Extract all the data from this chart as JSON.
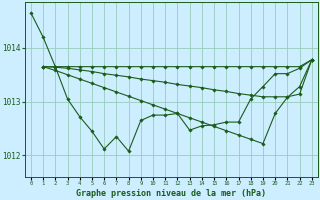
{
  "title": "Graphe pression niveau de la mer (hPa)",
  "bg_color": "#cceeff",
  "grid_color": "#99ccbb",
  "line_color": "#1a5c1a",
  "marker_color": "#1a5c1a",
  "xlim": [
    -0.5,
    23.5
  ],
  "ylim": [
    1011.6,
    1014.85
  ],
  "yticks": [
    1012,
    1013,
    1014
  ],
  "xticks": [
    0,
    1,
    2,
    3,
    4,
    5,
    6,
    7,
    8,
    9,
    10,
    11,
    12,
    13,
    14,
    15,
    16,
    17,
    18,
    19,
    20,
    21,
    22,
    23
  ],
  "series": [
    {
      "x": [
        0,
        1,
        2,
        3,
        4,
        5,
        6,
        7,
        8,
        9,
        10,
        11,
        12,
        13,
        14,
        15,
        16,
        17,
        18,
        19,
        20,
        21,
        22,
        23
      ],
      "y": [
        1014.65,
        1014.2,
        1013.65,
        1013.05,
        1012.72,
        1012.45,
        1012.12,
        1012.35,
        1012.08,
        1012.65,
        1012.75,
        1012.75,
        1012.78,
        1012.47,
        1012.55,
        1012.57,
        1012.62,
        1012.62,
        1013.05,
        1013.28,
        1013.52,
        1013.52,
        1013.62,
        1013.78
      ]
    },
    {
      "x": [
        1,
        2,
        3,
        4,
        5,
        6,
        7,
        8,
        9,
        10,
        11,
        12,
        13,
        14,
        15,
        16,
        17,
        18,
        19,
        20,
        21,
        22,
        23
      ],
      "y": [
        1013.65,
        1013.65,
        1013.65,
        1013.65,
        1013.65,
        1013.65,
        1013.65,
        1013.65,
        1013.65,
        1013.65,
        1013.65,
        1013.65,
        1013.65,
        1013.65,
        1013.65,
        1013.65,
        1013.65,
        1013.65,
        1013.65,
        1013.65,
        1013.65,
        1013.65,
        1013.78
      ]
    },
    {
      "x": [
        1,
        2,
        3,
        4,
        5,
        6,
        7,
        8,
        9,
        10,
        11,
        12,
        13,
        14,
        15,
        16,
        17,
        18,
        19,
        20,
        21,
        22,
        23
      ],
      "y": [
        1013.65,
        1013.64,
        1013.62,
        1013.59,
        1013.56,
        1013.52,
        1013.49,
        1013.46,
        1013.42,
        1013.39,
        1013.36,
        1013.32,
        1013.29,
        1013.26,
        1013.22,
        1013.19,
        1013.15,
        1013.12,
        1013.09,
        1013.09,
        1013.09,
        1013.14,
        1013.78
      ]
    },
    {
      "x": [
        1,
        2,
        3,
        4,
        5,
        6,
        7,
        8,
        9,
        10,
        11,
        12,
        13,
        14,
        15,
        16,
        17,
        18,
        19,
        20,
        21,
        22,
        23
      ],
      "y": [
        1013.65,
        1013.58,
        1013.5,
        1013.42,
        1013.34,
        1013.26,
        1013.18,
        1013.1,
        1013.02,
        1012.94,
        1012.86,
        1012.78,
        1012.7,
        1012.62,
        1012.54,
        1012.46,
        1012.38,
        1012.3,
        1012.22,
        1012.78,
        1013.08,
        1013.28,
        1013.78
      ]
    }
  ]
}
